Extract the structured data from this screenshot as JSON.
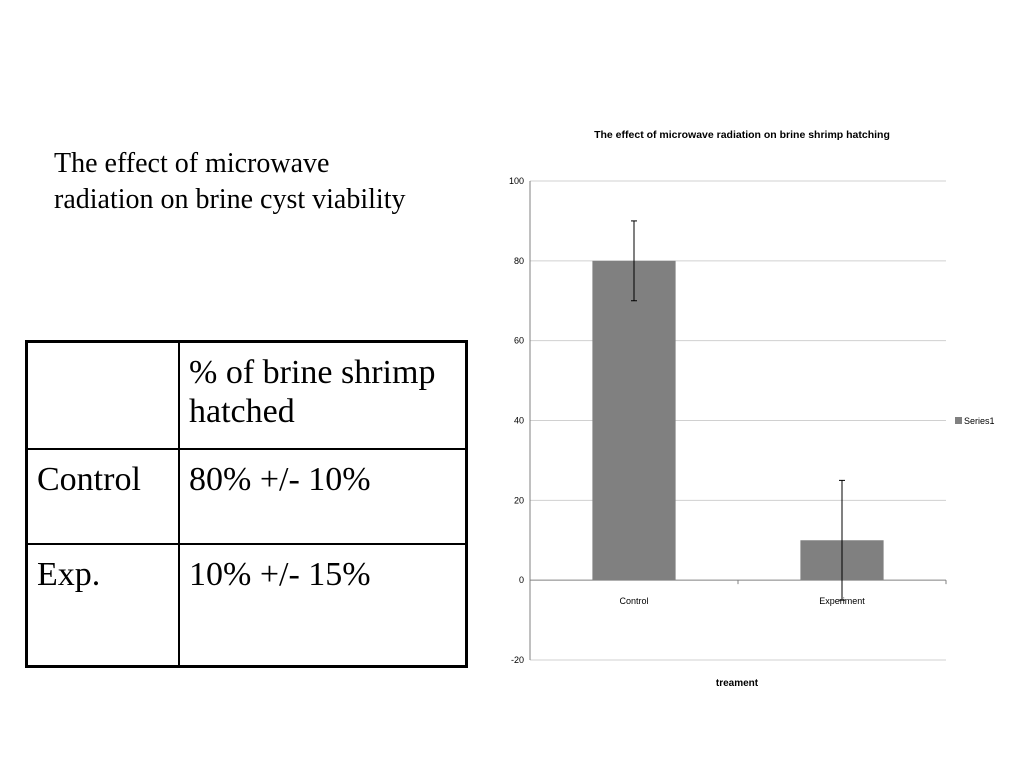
{
  "slide": {
    "title": "The effect of microwave radiation on brine cyst viability"
  },
  "table": {
    "header": [
      "",
      "% of brine shrimp hatched"
    ],
    "rows": [
      [
        "Control",
        "80% +/- 10%"
      ],
      [
        "Exp.",
        "10% +/- 15%"
      ]
    ]
  },
  "chart_data": {
    "type": "bar",
    "title": "The effect of microwave radiation on brine shrimp hatching",
    "xlabel": "treament",
    "ylabel": "",
    "categories": [
      "Control",
      "Experiment"
    ],
    "series": [
      {
        "name": "Series1",
        "values": [
          80,
          10
        ],
        "errors": [
          10,
          15
        ]
      }
    ],
    "ylim": [
      -20,
      100
    ],
    "yticks": [
      100,
      80,
      60,
      40,
      20,
      0,
      -20
    ],
    "grid": true,
    "legend": "right",
    "colors": {
      "bar": "#808080",
      "grid": "#d0d0d0",
      "axis": "#808080"
    }
  }
}
